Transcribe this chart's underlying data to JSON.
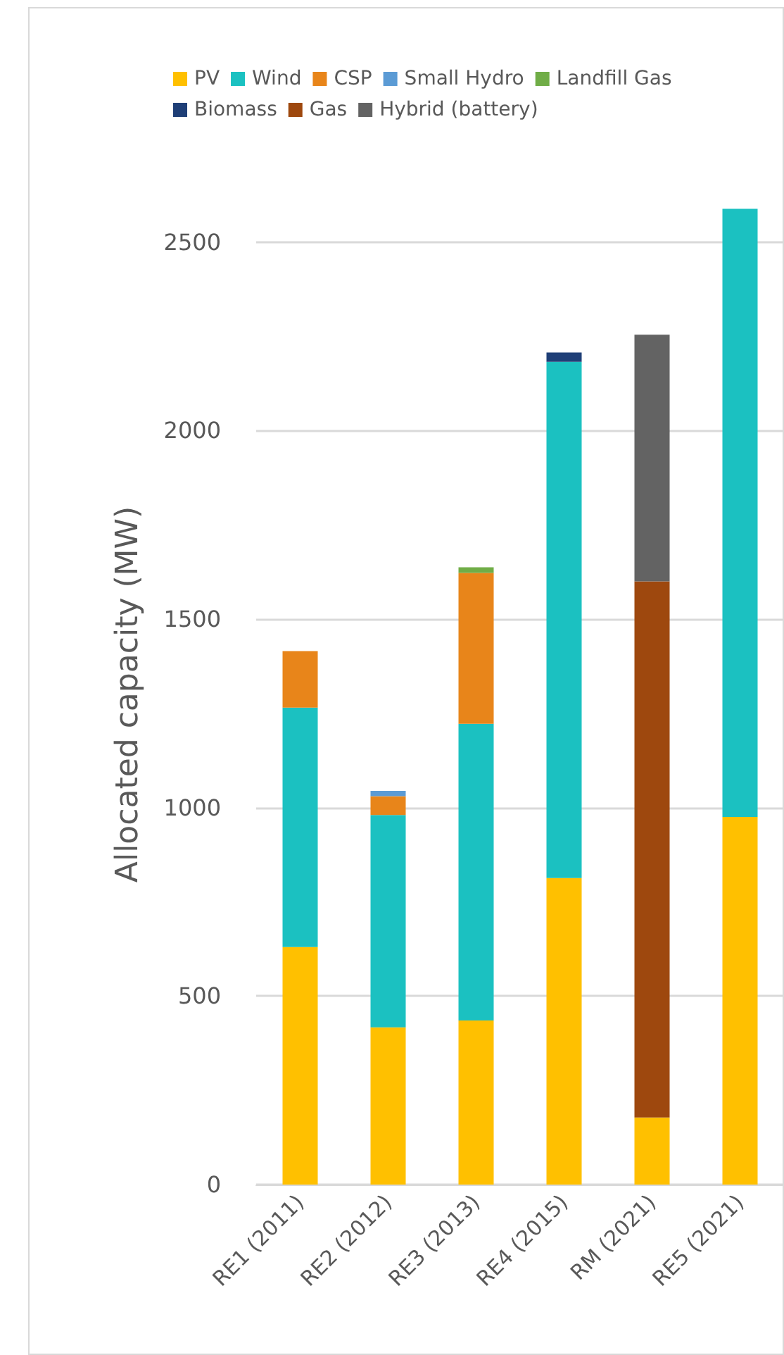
{
  "chart_data": {
    "type": "bar",
    "stacked": true,
    "ylabel": "Allocated capacity (MW)",
    "categories": [
      "RE1 (2011)",
      "RE2 (2012)",
      "RE3 (2013)",
      "RE4 (2015)",
      "RM (2021)",
      "RE5 (2021)"
    ],
    "series": [
      {
        "name": "PV",
        "color": "#ffc000",
        "values": [
          630,
          417,
          435,
          813,
          178,
          975
        ]
      },
      {
        "name": "Wind",
        "color": "#1bc1c1",
        "values": [
          635,
          563,
          787,
          1369,
          null,
          1613
        ]
      },
      {
        "name": "CSP",
        "color": "#e8851a",
        "values": [
          150,
          50,
          400,
          null,
          null,
          null
        ]
      },
      {
        "name": "Small Hydro",
        "color": "#5b9bd5",
        "values": [
          null,
          14,
          null,
          null,
          null,
          null
        ]
      },
      {
        "name": "Landfill Gas",
        "color": "#70ad47",
        "values": [
          null,
          null,
          15,
          null,
          null,
          null
        ]
      },
      {
        "name": "Biomass",
        "color": "#1f3f77",
        "values": [
          null,
          null,
          null,
          25,
          null,
          null
        ]
      },
      {
        "name": "Gas",
        "color": "#9e480e",
        "values": [
          null,
          null,
          null,
          null,
          1422,
          null
        ]
      },
      {
        "name": "Hybrid (battery)",
        "color": "#636363",
        "values": [
          null,
          null,
          null,
          null,
          654,
          null
        ]
      }
    ],
    "ylim": [
      0,
      2600
    ],
    "yticks": [
      0,
      500,
      1000,
      1500,
      2000,
      2500
    ],
    "grid": "y",
    "legend": "top"
  }
}
